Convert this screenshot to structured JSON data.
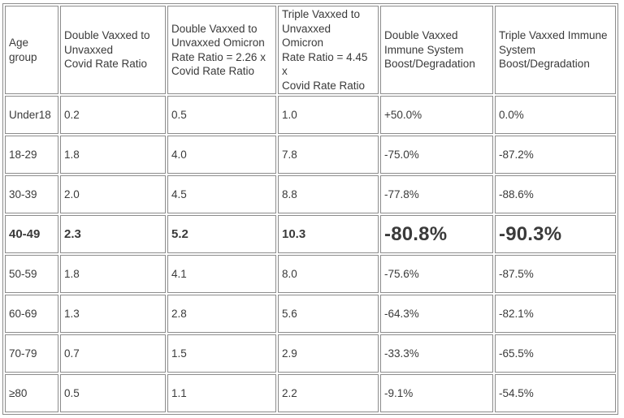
{
  "colors": {
    "border": "#8c8c8c",
    "text": "#3a3a3a",
    "green": "#107c10",
    "red": "#d83b01",
    "neutral": "#262626"
  },
  "table": {
    "headers": {
      "age": "Age\ngroup",
      "dv_covid": "Double Vaxxed to\nUnvaxxed\nCovid Rate Ratio",
      "dv_omicron": "Double Vaxxed to\nUnvaxxed Omicron\nRate Ratio = 2.26 x\nCovid Rate Ratio",
      "tv_omicron": "Triple Vaxxed to\nUnvaxxed Omicron\nRate Ratio = 4.45 x\nCovid Rate Ratio",
      "dv_immune": "Double Vaxxed\nImmune System\nBoost/Degradation",
      "tv_immune": "Triple Vaxxed Immune\nSystem\nBoost/Degradation"
    },
    "rows": [
      {
        "age": "Under18",
        "dv_covid": "0.2",
        "dv_omicron": "0.5",
        "tv_omicron": "1.0",
        "dv_immune": "+50.0%",
        "tv_immune": "0.0%"
      },
      {
        "age": "18-29",
        "dv_covid": "1.8",
        "dv_omicron": "4.0",
        "tv_omicron": "7.8",
        "dv_immune": "-75.0%",
        "tv_immune": "-87.2%"
      },
      {
        "age": "30-39",
        "dv_covid": "2.0",
        "dv_omicron": "4.5",
        "tv_omicron": "8.8",
        "dv_immune": "-77.8%",
        "tv_immune": "-88.6%"
      },
      {
        "age": "40-49",
        "dv_covid": "2.3",
        "dv_omicron": "5.2",
        "tv_omicron": "10.3",
        "dv_immune": "-80.8%",
        "tv_immune": "-90.3%"
      },
      {
        "age": "50-59",
        "dv_covid": "1.8",
        "dv_omicron": "4.1",
        "tv_omicron": "8.0",
        "dv_immune": "-75.6%",
        "tv_immune": "-87.5%"
      },
      {
        "age": "60-69",
        "dv_covid": "1.3",
        "dv_omicron": "2.8",
        "tv_omicron": "5.6",
        "dv_immune": "-64.3%",
        "tv_immune": "-82.1%"
      },
      {
        "age": "70-79",
        "dv_covid": "0.7",
        "dv_omicron": "1.5",
        "tv_omicron": "2.9",
        "dv_immune": "-33.3%",
        "tv_immune": "-65.5%"
      },
      {
        "age": "≥80",
        "dv_covid": "0.5",
        "dv_omicron": "1.1",
        "tv_omicron": "2.2",
        "dv_immune": "-9.1%",
        "tv_immune": "-54.5%"
      }
    ]
  },
  "chart_data": {
    "type": "table",
    "columns": [
      "Age group",
      "Double Vaxxed to Unvaxxed Covid Rate Ratio",
      "Double Vaxxed to Unvaxxed Omicron Rate Ratio = 2.26 x Covid Rate Ratio",
      "Triple Vaxxed to Unvaxxed Omicron Rate Ratio = 4.45 x Covid Rate Ratio",
      "Double Vaxxed Immune System Boost/Degradation",
      "Triple Vaxxed Immune System Boost/Degradation"
    ],
    "rows": [
      [
        "Under18",
        0.2,
        0.5,
        1.0,
        "+50.0%",
        "0.0%"
      ],
      [
        "18-29",
        1.8,
        4.0,
        7.8,
        "-75.0%",
        "-87.2%"
      ],
      [
        "30-39",
        2.0,
        4.5,
        8.8,
        "-77.8%",
        "-88.6%"
      ],
      [
        "40-49",
        2.3,
        5.2,
        10.3,
        "-80.8%",
        "-90.3%"
      ],
      [
        "50-59",
        1.8,
        4.1,
        8.0,
        "-75.6%",
        "-87.5%"
      ],
      [
        "60-69",
        1.3,
        2.8,
        5.6,
        "-64.3%",
        "-82.1%"
      ],
      [
        "70-79",
        0.7,
        1.5,
        2.9,
        "-33.3%",
        "-65.5%"
      ],
      [
        "≥80",
        0.5,
        1.1,
        2.2,
        "-9.1%",
        "-54.5%"
      ]
    ],
    "highlighted_row": "40-49",
    "positive_color": "#107c10",
    "negative_color": "#d83b01"
  }
}
